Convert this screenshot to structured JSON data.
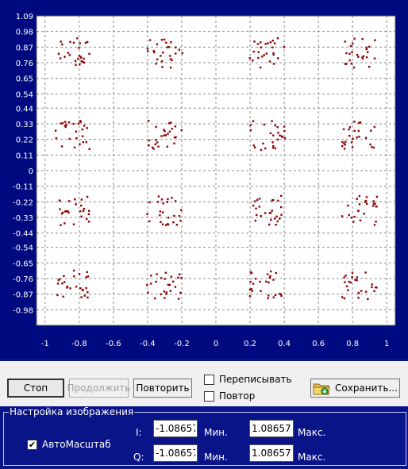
{
  "chart_data": {
    "type": "scatter",
    "title": "",
    "xlabel": "",
    "ylabel": "",
    "xlim": [
      -1.05,
      1.05
    ],
    "ylim": [
      -1.09,
      1.09
    ],
    "grid": true,
    "x_ticks": [
      "-1",
      "-0.8",
      "-0.6",
      "-0.4",
      "-0.2",
      "0",
      "0.2",
      "0.4",
      "0.6",
      "0.8",
      "1"
    ],
    "x_tick_values": [
      -1,
      -0.8,
      -0.6,
      -0.4,
      -0.2,
      0,
      0.2,
      0.4,
      0.6,
      0.8,
      1
    ],
    "y_ticks": [
      "1.09",
      "0.98",
      "0.87",
      "0.76",
      "0.65",
      "0.54",
      "0.44",
      "0.33",
      "0.22",
      "0.11",
      "0",
      "-0.11",
      "-0.22",
      "-0.33",
      "-0.44",
      "-0.54",
      "-0.65",
      "-0.76",
      "-0.87",
      "-0.98"
    ],
    "y_tick_values": [
      1.09,
      0.98,
      0.87,
      0.76,
      0.65,
      0.54,
      0.44,
      0.33,
      0.22,
      0.11,
      0,
      -0.11,
      -0.22,
      -0.33,
      -0.44,
      -0.54,
      -0.65,
      -0.76,
      -0.87,
      -0.98
    ],
    "cluster_centers_x": [
      -0.84,
      -0.3,
      0.3,
      0.84
    ],
    "cluster_centers_y": [
      0.83,
      0.25,
      -0.28,
      -0.8
    ],
    "cluster_spread": 0.08,
    "points_per_cluster": 26,
    "marker_color": "#8b0000"
  },
  "buttons": {
    "stop": "Стоп",
    "continue": "Продолжить",
    "repeat": "Повторить",
    "save": "Сохранить..."
  },
  "checkboxes": {
    "overwrite": {
      "label": "Переписывать",
      "checked": false
    },
    "repeat": {
      "label": "Повтор",
      "checked": false
    },
    "autoscale": {
      "label": "АвтоМасштаб",
      "checked": true
    }
  },
  "settings": {
    "group_title": "Настройка изображения",
    "i_label": "I:",
    "q_label": "Q:",
    "min_label": "Мин.",
    "max_label": "Макс.",
    "i_min": "-1.086572",
    "i_max": "1.086572",
    "q_min": "-1.086572",
    "q_max": "1.086572"
  },
  "colors": {
    "background": "#000a80",
    "plot_background": "#ffffff",
    "marker": "#8b0000"
  }
}
